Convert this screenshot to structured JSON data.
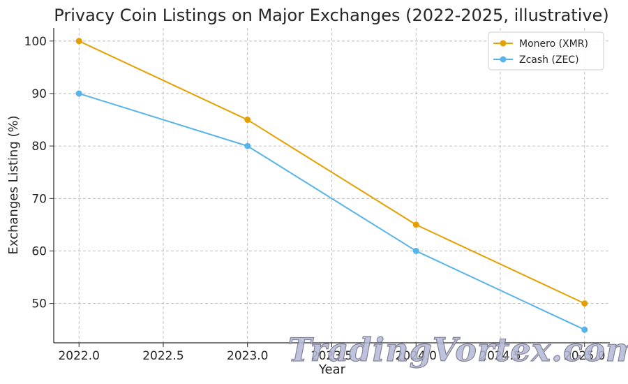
{
  "chart_data": {
    "type": "line",
    "title": "Privacy Coin Listings on Major Exchanges (2022-2025, illustrative)",
    "xlabel": "Year",
    "ylabel": "Exchanges Listing (%)",
    "x": [
      2022,
      2023,
      2024,
      2025
    ],
    "xlim": [
      2021.85,
      2025.15
    ],
    "ylim": [
      42.5,
      102.5
    ],
    "xticks": [
      2022.0,
      2022.5,
      2023.0,
      2023.5,
      2024.0,
      2024.5,
      2025.0
    ],
    "xtick_labels": [
      "2022.0",
      "2022.5",
      "2023.0",
      "2023.5",
      "2024.0",
      "2024.5",
      "2025.0"
    ],
    "yticks": [
      50,
      60,
      70,
      80,
      90,
      100
    ],
    "ytick_labels": [
      "50",
      "60",
      "70",
      "80",
      "90",
      "100"
    ],
    "grid": true,
    "legend_position": "top-right",
    "series": [
      {
        "name": "Monero (XMR)",
        "color": "#E69F00",
        "values": [
          100,
          85,
          65,
          50
        ]
      },
      {
        "name": "Zcash (ZEC)",
        "color": "#56B4E9",
        "values": [
          90,
          80,
          60,
          45
        ]
      }
    ]
  },
  "watermark": {
    "text": "TradingVortex.com"
  }
}
